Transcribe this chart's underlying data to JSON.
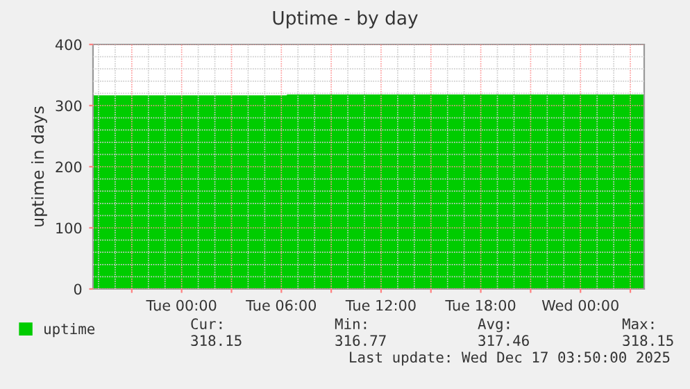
{
  "chart_data": {
    "type": "area",
    "title": "Uptime - by day",
    "ylabel": "uptime in days",
    "x": [
      "2025-12-15T18:40",
      "2025-12-16T06:20",
      "2025-12-16T06:20",
      "2025-12-17T03:50"
    ],
    "series": [
      {
        "name": "uptime",
        "color": "#00cc00",
        "values": [
          316.77,
          316.77,
          318.15,
          318.15
        ]
      }
    ],
    "xlim": [
      "2025-12-15T18:40",
      "2025-12-17T03:50"
    ],
    "xticks": [
      {
        "value": "2025-12-15T21:00",
        "label": null
      },
      {
        "value": "2025-12-16T00:00",
        "label": "Tue 00:00"
      },
      {
        "value": "2025-12-16T03:00",
        "label": null
      },
      {
        "value": "2025-12-16T06:00",
        "label": "Tue 06:00"
      },
      {
        "value": "2025-12-16T09:00",
        "label": null
      },
      {
        "value": "2025-12-16T12:00",
        "label": "Tue 12:00"
      },
      {
        "value": "2025-12-16T15:00",
        "label": null
      },
      {
        "value": "2025-12-16T18:00",
        "label": "Tue 18:00"
      },
      {
        "value": "2025-12-16T21:00",
        "label": null
      },
      {
        "value": "2025-12-17T00:00",
        "label": "Wed 00:00"
      },
      {
        "value": "2025-12-17T03:00",
        "label": null
      }
    ],
    "ylim": [
      0,
      400
    ],
    "yticks": [
      0,
      100,
      200,
      300,
      400
    ],
    "grid": true,
    "legend": "bottom left",
    "annotations": [
      "Cur:",
      "Min:",
      "Avg:",
      "Max:",
      "318.15",
      "316.77",
      "317.46",
      "318.15",
      "Last update: Wed Dec 17 03:50:00 2025"
    ]
  }
}
